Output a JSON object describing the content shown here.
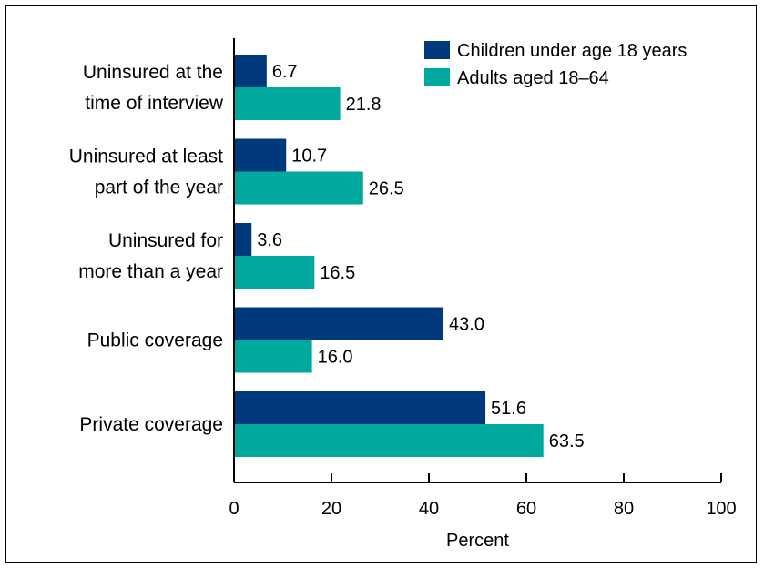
{
  "chart_data": {
    "type": "bar",
    "orientation": "horizontal",
    "categories": [
      [
        "Uninsured at the",
        "time of interview"
      ],
      [
        "Uninsured at least",
        "part of the year"
      ],
      [
        "Uninsured for",
        "more than a year"
      ],
      [
        "Public coverage"
      ],
      [
        "Private coverage"
      ]
    ],
    "series": [
      {
        "name": "Children under age 18 years",
        "color": "#003a7d",
        "values": [
          6.7,
          10.7,
          3.6,
          43.0,
          51.6
        ],
        "labels": [
          "6.7",
          "10.7",
          "3.6",
          "43.0",
          "51.6"
        ]
      },
      {
        "name": "Adults aged 18–64",
        "color": "#00a99d",
        "values": [
          21.8,
          26.5,
          16.5,
          16.0,
          63.5
        ],
        "labels": [
          "21.8",
          "26.5",
          "16.5",
          "16.0",
          "63.5"
        ]
      }
    ],
    "xlabel": "Percent",
    "ylabel": "",
    "title": "",
    "xlim": [
      0,
      100
    ],
    "xticks": [
      0,
      20,
      40,
      60,
      80,
      100
    ],
    "grid": false,
    "legend_position": "top-right"
  }
}
